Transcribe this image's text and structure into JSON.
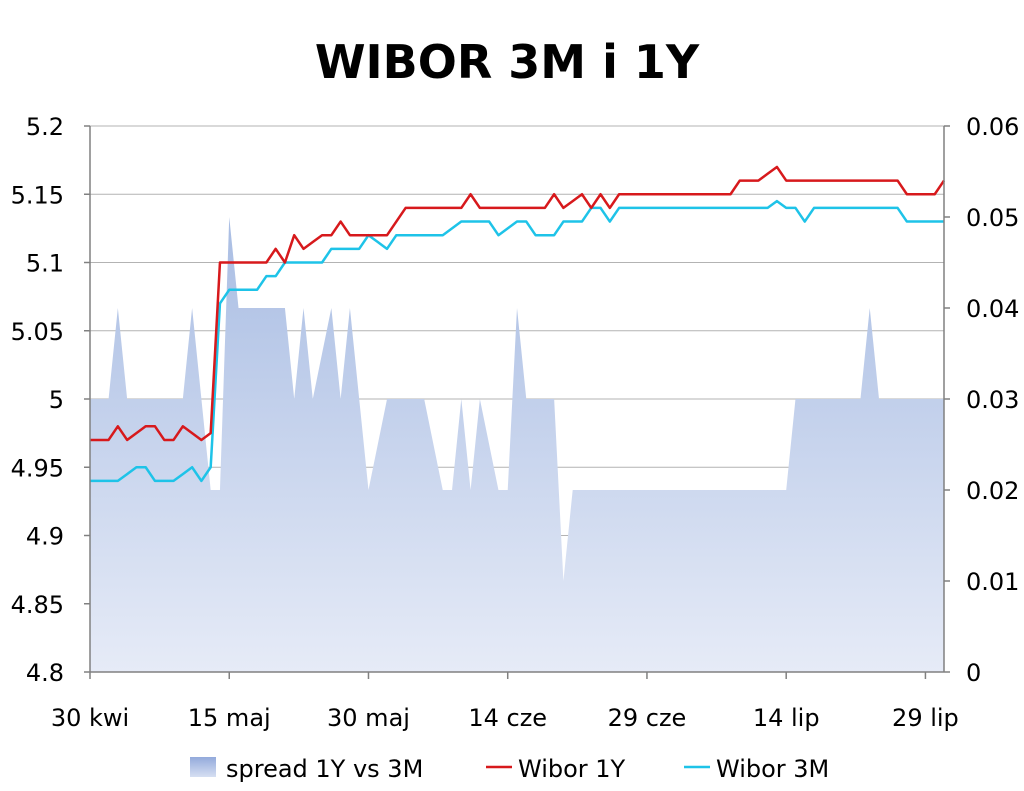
{
  "chart_data": {
    "type": "line",
    "title": "WIBOR 3M i 1Y",
    "x_tick_labels": [
      "30 kwi",
      "15 maj",
      "30 maj",
      "14 cze",
      "29 cze",
      "14 lip",
      "29 lip"
    ],
    "y_left": {
      "ylim": [
        4.8,
        5.2
      ],
      "ticks": [
        "4.8",
        "4.85",
        "4.9",
        "4.95",
        "5",
        "5.05",
        "5.1",
        "5.15",
        "5.2"
      ]
    },
    "y_right": {
      "ylim": [
        0,
        0.06
      ],
      "ticks": [
        "0",
        "0.01",
        "0.02",
        "0.03",
        "0.04",
        "0.05",
        "0.06"
      ]
    },
    "grid": true,
    "legend_position": "bottom",
    "series": [
      {
        "name": "spread 1Y vs 3M",
        "kind": "area",
        "axis": "right",
        "color": "#b4c6e7",
        "x": [
          "2010-04-30",
          "2010-05-01",
          "2010-05-02",
          "2010-05-03",
          "2010-05-04",
          "2010-05-05",
          "2010-05-06",
          "2010-05-07",
          "2010-05-08",
          "2010-05-09",
          "2010-05-10",
          "2010-05-11",
          "2010-05-12",
          "2010-05-13",
          "2010-05-14",
          "2010-05-15",
          "2010-05-16",
          "2010-05-17",
          "2010-05-18",
          "2010-05-19",
          "2010-05-20",
          "2010-05-21",
          "2010-05-22",
          "2010-05-23",
          "2010-05-24",
          "2010-05-25",
          "2010-05-26",
          "2010-05-27",
          "2010-05-28",
          "2010-05-29",
          "2010-05-30",
          "2010-05-31",
          "2010-06-01",
          "2010-06-02",
          "2010-06-03",
          "2010-06-04",
          "2010-06-05",
          "2010-06-06",
          "2010-06-07",
          "2010-06-08",
          "2010-06-09",
          "2010-06-10",
          "2010-06-11",
          "2010-06-12",
          "2010-06-13",
          "2010-06-14",
          "2010-06-15",
          "2010-06-16",
          "2010-06-17",
          "2010-06-18",
          "2010-06-19",
          "2010-06-20",
          "2010-06-21",
          "2010-06-22",
          "2010-06-23",
          "2010-06-24",
          "2010-06-25",
          "2010-06-26",
          "2010-06-27",
          "2010-06-28",
          "2010-06-29",
          "2010-06-30",
          "2010-07-01",
          "2010-07-02",
          "2010-07-03",
          "2010-07-04",
          "2010-07-05",
          "2010-07-06",
          "2010-07-07",
          "2010-07-08",
          "2010-07-09",
          "2010-07-10",
          "2010-07-11",
          "2010-07-12",
          "2010-07-13",
          "2010-07-14",
          "2010-07-15",
          "2010-07-16",
          "2010-07-17",
          "2010-07-18",
          "2010-07-19",
          "2010-07-20",
          "2010-07-21",
          "2010-07-22",
          "2010-07-23",
          "2010-07-24",
          "2010-07-25",
          "2010-07-26",
          "2010-07-27",
          "2010-07-28",
          "2010-07-29",
          "2010-07-30",
          "2010-07-31"
        ],
        "values": [
          0.03,
          0.03,
          0.03,
          0.04,
          0.03,
          0.03,
          0.03,
          0.03,
          0.03,
          0.03,
          0.03,
          0.04,
          0.03,
          0.02,
          0.02,
          0.05,
          0.04,
          0.04,
          0.04,
          0.04,
          0.04,
          0.04,
          0.03,
          0.04,
          0.03,
          0.035,
          0.04,
          0.03,
          0.04,
          0.03,
          0.02,
          0.025,
          0.03,
          0.03,
          0.03,
          0.03,
          0.03,
          0.025,
          0.02,
          0.02,
          0.03,
          0.02,
          0.03,
          0.025,
          0.02,
          0.02,
          0.04,
          0.03,
          0.03,
          0.03,
          0.03,
          0.01,
          0.02,
          0.02,
          0.02,
          0.02,
          0.02,
          0.02,
          0.02,
          0.02,
          0.02,
          0.02,
          0.02,
          0.02,
          0.02,
          0.02,
          0.02,
          0.02,
          0.02,
          0.02,
          0.02,
          0.02,
          0.02,
          0.02,
          0.02,
          0.02,
          0.03,
          0.03,
          0.03,
          0.03,
          0.03,
          0.03,
          0.03,
          0.03,
          0.04,
          0.03,
          0.03,
          0.03,
          0.03,
          0.03,
          0.03,
          0.03,
          0.03
        ]
      },
      {
        "name": "Wibor 1Y",
        "kind": "line",
        "axis": "left",
        "color": "#d7191c",
        "x": [
          "2010-04-30",
          "2010-05-01",
          "2010-05-02",
          "2010-05-03",
          "2010-05-04",
          "2010-05-05",
          "2010-05-06",
          "2010-05-07",
          "2010-05-08",
          "2010-05-09",
          "2010-05-10",
          "2010-05-11",
          "2010-05-12",
          "2010-05-13",
          "2010-05-14",
          "2010-05-15",
          "2010-05-16",
          "2010-05-17",
          "2010-05-18",
          "2010-05-19",
          "2010-05-20",
          "2010-05-21",
          "2010-05-22",
          "2010-05-23",
          "2010-05-24",
          "2010-05-25",
          "2010-05-26",
          "2010-05-27",
          "2010-05-28",
          "2010-05-29",
          "2010-05-30",
          "2010-05-31",
          "2010-06-01",
          "2010-06-02",
          "2010-06-03",
          "2010-06-04",
          "2010-06-05",
          "2010-06-06",
          "2010-06-07",
          "2010-06-08",
          "2010-06-09",
          "2010-06-10",
          "2010-06-11",
          "2010-06-12",
          "2010-06-13",
          "2010-06-14",
          "2010-06-15",
          "2010-06-16",
          "2010-06-17",
          "2010-06-18",
          "2010-06-19",
          "2010-06-20",
          "2010-06-21",
          "2010-06-22",
          "2010-06-23",
          "2010-06-24",
          "2010-06-25",
          "2010-06-26",
          "2010-06-27",
          "2010-06-28",
          "2010-06-29",
          "2010-06-30",
          "2010-07-01",
          "2010-07-02",
          "2010-07-03",
          "2010-07-04",
          "2010-07-05",
          "2010-07-06",
          "2010-07-07",
          "2010-07-08",
          "2010-07-09",
          "2010-07-10",
          "2010-07-11",
          "2010-07-12",
          "2010-07-13",
          "2010-07-14",
          "2010-07-15",
          "2010-07-16",
          "2010-07-17",
          "2010-07-18",
          "2010-07-19",
          "2010-07-20",
          "2010-07-21",
          "2010-07-22",
          "2010-07-23",
          "2010-07-24",
          "2010-07-25",
          "2010-07-26",
          "2010-07-27",
          "2010-07-28",
          "2010-07-29",
          "2010-07-30",
          "2010-07-31"
        ],
        "values": [
          4.97,
          4.97,
          4.97,
          4.98,
          4.97,
          4.975,
          4.98,
          4.98,
          4.97,
          4.97,
          4.98,
          4.975,
          4.97,
          4.975,
          5.1,
          5.1,
          5.1,
          5.1,
          5.1,
          5.1,
          5.11,
          5.1,
          5.12,
          5.11,
          5.115,
          5.12,
          5.12,
          5.13,
          5.12,
          5.12,
          5.12,
          5.12,
          5.12,
          5.13,
          5.14,
          5.14,
          5.14,
          5.14,
          5.14,
          5.14,
          5.14,
          5.15,
          5.14,
          5.14,
          5.14,
          5.14,
          5.14,
          5.14,
          5.14,
          5.14,
          5.15,
          5.14,
          5.145,
          5.15,
          5.14,
          5.15,
          5.14,
          5.15,
          5.15,
          5.15,
          5.15,
          5.15,
          5.15,
          5.15,
          5.15,
          5.15,
          5.15,
          5.15,
          5.15,
          5.15,
          5.16,
          5.16,
          5.16,
          5.165,
          5.17,
          5.16,
          5.16,
          5.16,
          5.16,
          5.16,
          5.16,
          5.16,
          5.16,
          5.16,
          5.16,
          5.16,
          5.16,
          5.16,
          5.15,
          5.15,
          5.15,
          5.15,
          5.16
        ]
      },
      {
        "name": "Wibor 3M",
        "kind": "line",
        "axis": "left",
        "color": "#1ec3e8",
        "x": [
          "2010-04-30",
          "2010-05-01",
          "2010-05-02",
          "2010-05-03",
          "2010-05-04",
          "2010-05-05",
          "2010-05-06",
          "2010-05-07",
          "2010-05-08",
          "2010-05-09",
          "2010-05-10",
          "2010-05-11",
          "2010-05-12",
          "2010-05-13",
          "2010-05-14",
          "2010-05-15",
          "2010-05-16",
          "2010-05-17",
          "2010-05-18",
          "2010-05-19",
          "2010-05-20",
          "2010-05-21",
          "2010-05-22",
          "2010-05-23",
          "2010-05-24",
          "2010-05-25",
          "2010-05-26",
          "2010-05-27",
          "2010-05-28",
          "2010-05-29",
          "2010-05-30",
          "2010-05-31",
          "2010-06-01",
          "2010-06-02",
          "2010-06-03",
          "2010-06-04",
          "2010-06-05",
          "2010-06-06",
          "2010-06-07",
          "2010-06-08",
          "2010-06-09",
          "2010-06-10",
          "2010-06-11",
          "2010-06-12",
          "2010-06-13",
          "2010-06-14",
          "2010-06-15",
          "2010-06-16",
          "2010-06-17",
          "2010-06-18",
          "2010-06-19",
          "2010-06-20",
          "2010-06-21",
          "2010-06-22",
          "2010-06-23",
          "2010-06-24",
          "2010-06-25",
          "2010-06-26",
          "2010-06-27",
          "2010-06-28",
          "2010-06-29",
          "2010-06-30",
          "2010-07-01",
          "2010-07-02",
          "2010-07-03",
          "2010-07-04",
          "2010-07-05",
          "2010-07-06",
          "2010-07-07",
          "2010-07-08",
          "2010-07-09",
          "2010-07-10",
          "2010-07-11",
          "2010-07-12",
          "2010-07-13",
          "2010-07-14",
          "2010-07-15",
          "2010-07-16",
          "2010-07-17",
          "2010-07-18",
          "2010-07-19",
          "2010-07-20",
          "2010-07-21",
          "2010-07-22",
          "2010-07-23",
          "2010-07-24",
          "2010-07-25",
          "2010-07-26",
          "2010-07-27",
          "2010-07-28",
          "2010-07-29",
          "2010-07-30",
          "2010-07-31"
        ],
        "values": [
          4.94,
          4.94,
          4.94,
          4.94,
          4.945,
          4.95,
          4.95,
          4.94,
          4.94,
          4.94,
          4.945,
          4.95,
          4.94,
          4.95,
          5.07,
          5.08,
          5.08,
          5.08,
          5.08,
          5.09,
          5.09,
          5.1,
          5.1,
          5.1,
          5.1,
          5.1,
          5.11,
          5.11,
          5.11,
          5.11,
          5.12,
          5.115,
          5.11,
          5.12,
          5.12,
          5.12,
          5.12,
          5.12,
          5.12,
          5.125,
          5.13,
          5.13,
          5.13,
          5.13,
          5.12,
          5.125,
          5.13,
          5.13,
          5.12,
          5.12,
          5.12,
          5.13,
          5.13,
          5.13,
          5.14,
          5.14,
          5.13,
          5.14,
          5.14,
          5.14,
          5.14,
          5.14,
          5.14,
          5.14,
          5.14,
          5.14,
          5.14,
          5.14,
          5.14,
          5.14,
          5.14,
          5.14,
          5.14,
          5.14,
          5.145,
          5.14,
          5.14,
          5.13,
          5.14,
          5.14,
          5.14,
          5.14,
          5.14,
          5.14,
          5.14,
          5.14,
          5.14,
          5.14,
          5.13,
          5.13,
          5.13,
          5.13,
          5.13
        ]
      }
    ]
  }
}
